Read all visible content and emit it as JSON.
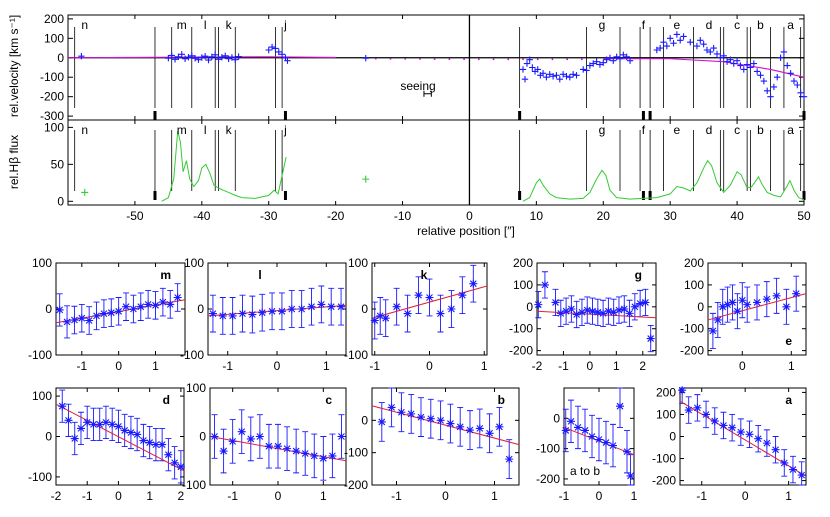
{
  "colors": {
    "blue": "#1a1aff",
    "red": "#e0203a",
    "magenta": "#d010d0",
    "green": "#33cc33",
    "black": "#000000"
  },
  "top": {
    "xlabel": "relative position [″]",
    "x_ticks": [
      -50,
      -40,
      -30,
      -20,
      -10,
      0,
      10,
      20,
      30,
      40,
      50
    ],
    "xlim": [
      -60,
      50
    ],
    "velocity": {
      "ylabel": "rel.velocity [km s⁻¹]",
      "ylim": [
        -320,
        220
      ],
      "y_ticks": [
        200,
        100,
        0,
        -100,
        -200,
        -300
      ],
      "seeing_label": "seeing",
      "points": [
        [
          -58,
          8
        ],
        [
          -45,
          -2
        ],
        [
          -44.5,
          12
        ],
        [
          -44,
          -8
        ],
        [
          -43.5,
          5
        ],
        [
          -43,
          18
        ],
        [
          -42.5,
          -5
        ],
        [
          -42,
          3
        ],
        [
          -41.5,
          10
        ],
        [
          -41,
          -3
        ],
        [
          -40.5,
          -10
        ],
        [
          -40,
          2
        ],
        [
          -39.5,
          8
        ],
        [
          -39,
          -12
        ],
        [
          -38.5,
          5
        ],
        [
          -38,
          15
        ],
        [
          -37.5,
          -8
        ],
        [
          -37,
          3
        ],
        [
          -36.5,
          10
        ],
        [
          -36,
          -5
        ],
        [
          -35.5,
          2
        ],
        [
          -35,
          -10
        ],
        [
          -34.5,
          6
        ],
        [
          -30,
          40
        ],
        [
          -29.5,
          55
        ],
        [
          -29,
          48
        ],
        [
          -28.5,
          30
        ],
        [
          -28,
          18
        ],
        [
          -27.5,
          0
        ],
        [
          -27.2,
          -15
        ],
        [
          -15.5,
          -2
        ],
        [
          8,
          -60
        ],
        [
          8.3,
          -110
        ],
        [
          8.6,
          -30
        ],
        [
          9,
          -10
        ],
        [
          9.4,
          -50
        ],
        [
          9.8,
          -70
        ],
        [
          10.2,
          -60
        ],
        [
          10.6,
          -90
        ],
        [
          11,
          -80
        ],
        [
          11.5,
          -100
        ],
        [
          12,
          -85
        ],
        [
          12.5,
          -95
        ],
        [
          13,
          -90
        ],
        [
          13.5,
          -110
        ],
        [
          14,
          -85
        ],
        [
          14.5,
          -95
        ],
        [
          15,
          -100
        ],
        [
          15.5,
          -85
        ],
        [
          16,
          -90
        ],
        [
          17,
          -60
        ],
        [
          17.5,
          -65
        ],
        [
          18,
          -40
        ],
        [
          18.5,
          -30
        ],
        [
          19,
          -20
        ],
        [
          19.5,
          -35
        ],
        [
          20,
          -25
        ],
        [
          20.5,
          -10
        ],
        [
          21,
          0
        ],
        [
          21.5,
          -15
        ],
        [
          22,
          5
        ],
        [
          22.5,
          -5
        ],
        [
          23,
          15
        ],
        [
          23.5,
          5
        ],
        [
          24,
          -15
        ],
        [
          28,
          40
        ],
        [
          28.5,
          50
        ],
        [
          29,
          80
        ],
        [
          29.5,
          60
        ],
        [
          30,
          100
        ],
        [
          30.5,
          75
        ],
        [
          31,
          120
        ],
        [
          31.5,
          90
        ],
        [
          32,
          110
        ],
        [
          33,
          80
        ],
        [
          34,
          60
        ],
        [
          34.5,
          90
        ],
        [
          35,
          70
        ],
        [
          35.5,
          40
        ],
        [
          36,
          30
        ],
        [
          36.5,
          50
        ],
        [
          37,
          20
        ],
        [
          37.5,
          0
        ],
        [
          38,
          10
        ],
        [
          38.5,
          -20
        ],
        [
          39,
          -10
        ],
        [
          39.5,
          -30
        ],
        [
          40,
          -15
        ],
        [
          40.5,
          -40
        ],
        [
          41,
          -60
        ],
        [
          41.5,
          -35
        ],
        [
          42,
          -50
        ],
        [
          42.5,
          -30
        ],
        [
          43,
          -70
        ],
        [
          43.5,
          -90
        ],
        [
          44,
          -120
        ],
        [
          44.5,
          -170
        ],
        [
          45,
          -200
        ],
        [
          45.5,
          -150
        ],
        [
          46,
          -100
        ],
        [
          46.5,
          0
        ],
        [
          47,
          30
        ],
        [
          47.5,
          -40
        ],
        [
          48,
          -80
        ],
        [
          48.5,
          -120
        ],
        [
          49,
          -140
        ],
        [
          49.5,
          -180
        ],
        [
          50,
          -200
        ]
      ],
      "labels": [
        {
          "t": "n",
          "x": -57.5
        },
        {
          "t": "m",
          "x": -43
        },
        {
          "t": "l",
          "x": -39.5
        },
        {
          "t": "k",
          "x": -36
        },
        {
          "t": "j",
          "x": -27.5
        },
        {
          "t": "g",
          "x": 19.8
        },
        {
          "t": "f",
          "x": 26
        },
        {
          "t": "e",
          "x": 31
        },
        {
          "t": "d",
          "x": 35.8
        },
        {
          "t": "c",
          "x": 40
        },
        {
          "t": "b",
          "x": 43.5
        },
        {
          "t": "a",
          "x": 48
        }
      ]
    },
    "flux": {
      "ylabel": "rel.Hβ flux",
      "ylim": [
        -5,
        110
      ],
      "y_ticks": [
        100,
        50,
        0
      ],
      "points": [
        [
          -57.5,
          12
        ],
        [
          -15.5,
          30
        ]
      ]
    },
    "dividers": [
      -59,
      -47,
      -44.5,
      -41.5,
      -38,
      -37.5,
      -35,
      -29,
      -28,
      7.5,
      17.5,
      22.5,
      25.5,
      27,
      29,
      33.5,
      37.5,
      38,
      41.5,
      42,
      45,
      47,
      49.5
    ]
  },
  "small_panels": [
    {
      "label": "m",
      "xlim": [
        -1.7,
        1.8
      ],
      "ylim": [
        -100,
        100
      ],
      "xticks": [
        -1,
        0,
        1
      ],
      "yticks": [
        100,
        0,
        -100
      ],
      "label_pos": "top-right",
      "x": [
        -1.6,
        -1.4,
        -1.2,
        -1.0,
        -0.8,
        -0.6,
        -0.4,
        -0.2,
        0.0,
        0.2,
        0.4,
        0.6,
        0.8,
        1.0,
        1.2,
        1.4,
        1.6
      ],
      "y": [
        -2,
        -28,
        -24,
        -20,
        -25,
        -15,
        -10,
        -8,
        -5,
        5,
        0,
        5,
        10,
        8,
        15,
        10,
        25
      ],
      "err": [
        35,
        35,
        30,
        30,
        30,
        30,
        30,
        30,
        30,
        30,
        30,
        30,
        30,
        30,
        30,
        30,
        30
      ],
      "fit": [
        [
          -1.7,
          -30
        ],
        [
          1.8,
          20
        ]
      ]
    },
    {
      "label": "l",
      "xlim": [
        -1.4,
        1.4
      ],
      "ylim": [
        -100,
        100
      ],
      "xticks": [
        -1,
        0,
        1
      ],
      "yticks": [
        100,
        0,
        -100
      ],
      "label_pos": "top-left",
      "x": [
        -1.3,
        -1.1,
        -0.9,
        -0.7,
        -0.5,
        -0.3,
        -0.1,
        0.1,
        0.3,
        0.5,
        0.7,
        0.9,
        1.1,
        1.3
      ],
      "y": [
        -10,
        -15,
        -15,
        -10,
        -12,
        -8,
        -5,
        -5,
        0,
        0,
        5,
        10,
        5,
        5
      ],
      "err": [
        40,
        40,
        40,
        40,
        40,
        40,
        40,
        40,
        40,
        40,
        40,
        40,
        40,
        40
      ],
      "fit": [
        [
          -1.4,
          -15
        ],
        [
          1.4,
          8
        ]
      ]
    },
    {
      "label": "k",
      "xlim": [
        -1.05,
        1.05
      ],
      "ylim": [
        -100,
        100
      ],
      "xticks": [
        -1,
        0,
        1
      ],
      "yticks": [
        100,
        0,
        -100
      ],
      "label_pos": "top-left",
      "x": [
        -1.0,
        -0.9,
        -0.8,
        -0.6,
        -0.4,
        -0.2,
        0.0,
        0.2,
        0.4,
        0.6,
        0.8
      ],
      "y": [
        -25,
        -15,
        -20,
        5,
        -10,
        30,
        25,
        -10,
        0,
        30,
        55
      ],
      "err": [
        40,
        40,
        40,
        40,
        40,
        40,
        40,
        40,
        40,
        40,
        40
      ],
      "fit": [
        [
          -1.05,
          -20
        ],
        [
          1.05,
          50
        ]
      ]
    },
    {
      "label": "g",
      "xlim": [
        -2.0,
        2.5
      ],
      "ylim": [
        -220,
        200
      ],
      "xticks": [
        -2,
        -1,
        0,
        1,
        2
      ],
      "yticks": [
        200,
        100,
        0,
        -100,
        -200
      ],
      "label_pos": "top-right",
      "x": [
        -1.95,
        -1.7,
        -1.3,
        -1.1,
        -0.9,
        -0.7,
        -0.5,
        -0.3,
        -0.1,
        0.1,
        0.3,
        0.5,
        0.7,
        0.9,
        1.1,
        1.3,
        1.5,
        1.7,
        1.9,
        2.1,
        2.3
      ],
      "y": [
        10,
        100,
        20,
        -30,
        -20,
        -10,
        -35,
        -25,
        -15,
        -20,
        -25,
        -30,
        -20,
        -25,
        -15,
        -10,
        -30,
        0,
        15,
        20,
        -145
      ],
      "err": [
        60,
        60,
        60,
        60,
        60,
        60,
        60,
        60,
        60,
        60,
        60,
        60,
        60,
        60,
        60,
        60,
        60,
        60,
        60,
        60,
        60
      ],
      "fit": [
        [
          -2.0,
          -20
        ],
        [
          2.5,
          -50
        ]
      ]
    },
    {
      "label": "e",
      "xlim": [
        -0.7,
        1.3
      ],
      "ylim": [
        -220,
        200
      ],
      "xticks": [
        0,
        1
      ],
      "yticks": [
        200,
        100,
        0,
        -100,
        -200
      ],
      "label_pos": "bottom-right",
      "x": [
        -0.6,
        -0.5,
        -0.4,
        -0.3,
        -0.2,
        -0.1,
        0.0,
        0.1,
        0.3,
        0.5,
        0.7,
        0.9,
        1.1
      ],
      "y": [
        -110,
        -60,
        0,
        10,
        20,
        -20,
        30,
        10,
        20,
        35,
        50,
        0,
        60
      ],
      "err": [
        80,
        80,
        80,
        80,
        80,
        80,
        80,
        80,
        80,
        80,
        80,
        80,
        80
      ],
      "fit": [
        [
          -0.7,
          -60
        ],
        [
          1.3,
          60
        ]
      ]
    },
    {
      "label": "d",
      "xlim": [
        -2.0,
        2.1
      ],
      "ylim": [
        -120,
        120
      ],
      "xticks": [
        -2,
        -1,
        0,
        1,
        2
      ],
      "yticks": [
        100,
        0,
        -100
      ],
      "label_pos": "top-right",
      "x": [
        -1.8,
        -1.6,
        -1.4,
        -1.2,
        -1.0,
        -0.8,
        -0.6,
        -0.4,
        -0.2,
        0.0,
        0.2,
        0.4,
        0.6,
        0.8,
        1.0,
        1.2,
        1.4,
        1.6,
        1.8,
        2.0
      ],
      "y": [
        75,
        40,
        -5,
        20,
        35,
        30,
        30,
        35,
        30,
        25,
        15,
        10,
        5,
        -10,
        -15,
        -20,
        -20,
        -45,
        -65,
        -75
      ],
      "err": [
        40,
        40,
        40,
        40,
        40,
        40,
        40,
        40,
        40,
        40,
        40,
        40,
        40,
        40,
        40,
        40,
        40,
        40,
        40,
        40
      ],
      "fit": [
        [
          -2.0,
          80
        ],
        [
          2.1,
          -85
        ]
      ]
    },
    {
      "label": "c",
      "xlim": [
        -1.5,
        1.5
      ],
      "ylim": [
        -100,
        100
      ],
      "xticks": [
        -1,
        0,
        1
      ],
      "yticks": [
        100,
        0,
        -100
      ],
      "label_pos": "top-right",
      "x": [
        -1.4,
        -1.2,
        -1.0,
        -0.8,
        -0.6,
        -0.4,
        -0.2,
        0.0,
        0.2,
        0.4,
        0.6,
        0.8,
        1.0,
        1.2,
        1.4
      ],
      "y": [
        0,
        -30,
        -10,
        10,
        -5,
        0,
        -20,
        -20,
        -25,
        -30,
        -35,
        -40,
        -45,
        -40,
        0
      ],
      "err": [
        45,
        45,
        45,
        45,
        45,
        45,
        45,
        45,
        45,
        45,
        45,
        45,
        45,
        45,
        45
      ],
      "fit": [
        [
          -1.5,
          0
        ],
        [
          1.5,
          -50
        ]
      ]
    },
    {
      "label": "b",
      "xlim": [
        -1.5,
        1.5
      ],
      "ylim": [
        -200,
        100
      ],
      "xticks": [
        -1,
        0,
        1
      ],
      "yticks": [
        0,
        -100,
        -200
      ],
      "label_pos": "top-right",
      "x": [
        -1.3,
        -1.1,
        -0.9,
        -0.7,
        -0.5,
        -0.3,
        -0.1,
        0.1,
        0.3,
        0.5,
        0.7,
        0.9,
        1.1,
        1.3
      ],
      "y": [
        -5,
        40,
        25,
        20,
        10,
        5,
        0,
        -10,
        -20,
        -30,
        -25,
        -40,
        -20,
        -120
      ],
      "err": [
        60,
        60,
        60,
        60,
        60,
        60,
        60,
        60,
        60,
        60,
        60,
        60,
        60,
        60
      ],
      "fit": [
        [
          -1.5,
          45
        ],
        [
          1.5,
          -75
        ]
      ]
    },
    {
      "label": "a to b",
      "xlim": [
        -1.0,
        1.0
      ],
      "ylim": [
        -220,
        100
      ],
      "xticks": [
        -1,
        0,
        1
      ],
      "yticks": [
        0,
        -100,
        -200
      ],
      "label_pos": "bottom-left",
      "x": [
        -0.95,
        -0.8,
        -0.6,
        -0.4,
        -0.2,
        0.0,
        0.2,
        0.4,
        0.6,
        0.8,
        0.9
      ],
      "y": [
        -40,
        -10,
        -30,
        -40,
        -60,
        -70,
        -80,
        -90,
        40,
        -110,
        -190
      ],
      "err": [
        70,
        70,
        70,
        70,
        70,
        70,
        70,
        70,
        70,
        70,
        70
      ],
      "fit": [
        [
          -1.0,
          -30
        ],
        [
          1.0,
          -120
        ]
      ]
    },
    {
      "label": "a",
      "xlim": [
        -1.5,
        1.4
      ],
      "ylim": [
        -220,
        220
      ],
      "xticks": [
        -1,
        0,
        1
      ],
      "yticks": [
        200,
        100,
        0,
        -100,
        -200
      ],
      "label_pos": "top-right",
      "x": [
        -1.45,
        -1.3,
        -1.1,
        -0.9,
        -0.7,
        -0.5,
        -0.3,
        -0.1,
        0.1,
        0.3,
        0.5,
        0.7,
        0.9,
        1.1,
        1.3
      ],
      "y": [
        210,
        120,
        130,
        100,
        70,
        50,
        40,
        20,
        10,
        -10,
        -30,
        -60,
        -120,
        -150,
        -175
      ],
      "err": [
        60,
        60,
        60,
        60,
        60,
        60,
        60,
        60,
        60,
        60,
        60,
        60,
        60,
        60,
        60
      ],
      "fit": [
        [
          -1.5,
          160
        ],
        [
          1.4,
          -180
        ]
      ]
    }
  ]
}
